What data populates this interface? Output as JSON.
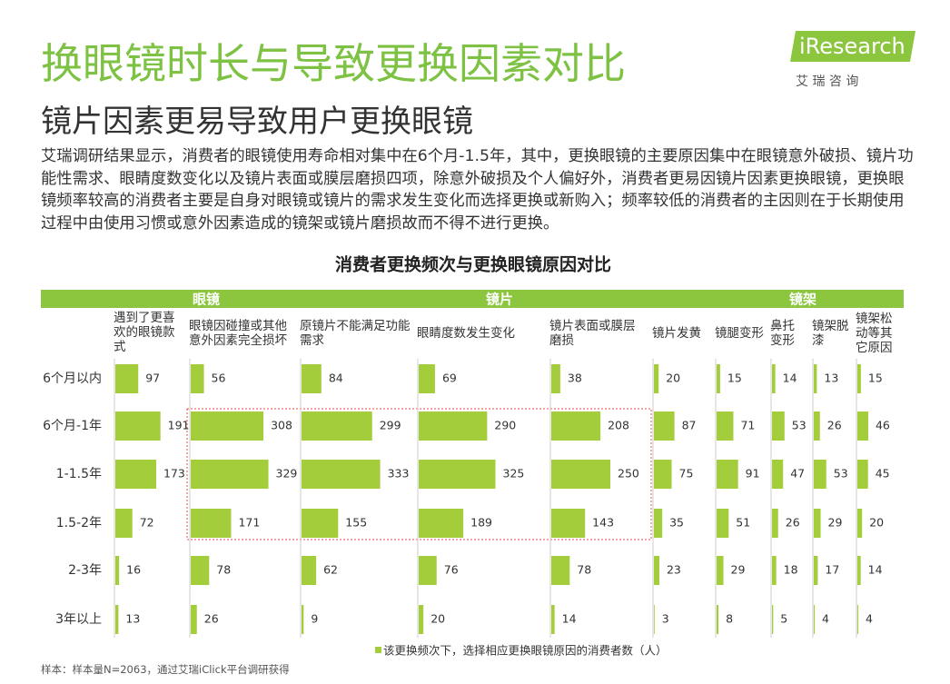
{
  "header": {
    "title": "换眼镜时长与导致更换因素对比",
    "subtitle": "镜片因素更易导致用户更换眼镜"
  },
  "logo": {
    "name": "iResearch",
    "tagline": "艾 瑞 咨 询"
  },
  "intro": "艾瑞调研结果显示，消费者的眼镜使用寿命相对集中在6个月-1.5年，其中，更换眼镜的主要原因集中在眼镜意外破损、镜片功能性需求、眼睛度数变化以及镜片表面或膜层磨损四项，除意外破损及个人偏好外，消费者更易因镜片因素更换眼镜，更换眼镜频率较高的消费者主要是自身对眼镜或镜片的需求发生变化而选择更换或新购入；频率较低的消费者的主因则在于长期使用过程中由使用习惯或意外因素造成的镜架或镜片磨损故而不得不进行更换。",
  "chart_data": {
    "type": "bar",
    "title": "消费者更换频次与更换眼镜原因对比",
    "groups": [
      "眼镜",
      "镜片",
      "镜架"
    ],
    "categories": [
      "6个月以内",
      "6个月-1年",
      "1-1.5年",
      "1.5-2年",
      "2-3年",
      "3年以上"
    ],
    "color": "#a3cd3b",
    "series": [
      {
        "name": "遇到了更喜欢的眼镜款式",
        "values": [
          97,
          191,
          173,
          72,
          16,
          13
        ]
      },
      {
        "name": "眼镜因碰撞或其他意外因素完全损坏",
        "values": [
          56,
          308,
          329,
          171,
          78,
          26
        ]
      },
      {
        "name": "原镜片不能满足功能需求",
        "values": [
          84,
          299,
          333,
          155,
          62,
          9
        ]
      },
      {
        "name": "眼睛度数发生变化",
        "values": [
          69,
          290,
          325,
          189,
          76,
          20
        ]
      },
      {
        "name": "镜片表面或膜层磨损",
        "values": [
          38,
          208,
          250,
          143,
          78,
          14
        ]
      },
      {
        "name": "镜片发黄",
        "values": [
          20,
          87,
          75,
          35,
          23,
          3
        ]
      },
      {
        "name": "镜腿变形",
        "values": [
          15,
          71,
          91,
          51,
          29,
          8
        ]
      },
      {
        "name": "鼻托变形",
        "values": [
          14,
          53,
          47,
          26,
          18,
          5
        ]
      },
      {
        "name": "镜架脱漆",
        "values": [
          13,
          26,
          53,
          29,
          17,
          4
        ]
      },
      {
        "name": "镜架松动等其它原因",
        "values": [
          15,
          46,
          45,
          20,
          14,
          4
        ]
      }
    ],
    "legend": "该更换频次下，选择相应更换眼镜原因的消费者数（人）"
  },
  "source": "样本：样本量N=2063，通过艾瑞iClick平台调研获得"
}
